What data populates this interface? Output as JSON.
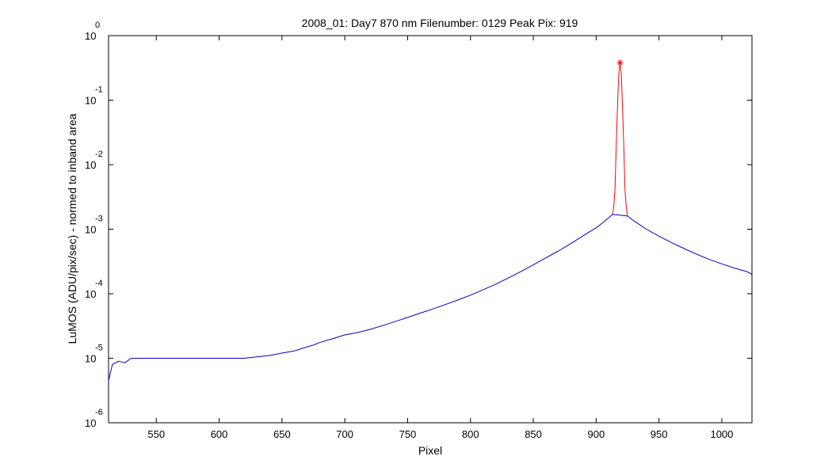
{
  "chart_data": {
    "type": "line",
    "title": "2008_01: Day7  870 nm  Filenumber: 0129 Peak Pix: 919",
    "xlabel": "Pixel",
    "ylabel": "LuMOS (ADU/pix/sec) - normed to inband area",
    "xlim": [
      512,
      1024
    ],
    "ylim": [
      1e-06,
      1
    ],
    "yscale": "log",
    "x_ticks": [
      "550",
      "600",
      "650",
      "700",
      "750",
      "800",
      "850",
      "900",
      "950",
      "1000"
    ],
    "y_ticks": [
      {
        "base": "10",
        "exp": "-6"
      },
      {
        "base": "10",
        "exp": "-5"
      },
      {
        "base": "10",
        "exp": "-4"
      },
      {
        "base": "10",
        "exp": "-3"
      },
      {
        "base": "10",
        "exp": "-2"
      },
      {
        "base": "10",
        "exp": "-1"
      },
      {
        "base": "10",
        "exp": "0"
      }
    ],
    "grid": false,
    "series": [
      {
        "color": "#0000cc",
        "x": [
          512,
          515,
          520,
          525,
          530,
          540,
          550,
          560,
          570,
          575,
          580,
          590,
          600,
          610,
          620,
          630,
          640,
          650,
          660,
          665,
          670,
          675,
          680,
          690,
          700,
          710,
          720,
          730,
          740,
          750,
          760,
          770,
          780,
          790,
          800,
          810,
          820,
          830,
          840,
          850,
          860,
          870,
          880,
          890,
          900,
          905,
          910,
          913,
          925,
          930,
          940,
          950,
          960,
          970,
          980,
          990,
          1000,
          1010,
          1020,
          1024
        ],
        "y": [
          4.5e-06,
          8e-06,
          9e-06,
          8.5e-06,
          1e-05,
          1e-05,
          1e-05,
          1e-05,
          1e-05,
          1e-05,
          1e-05,
          1e-05,
          1e-05,
          1e-05,
          1e-05,
          1.05e-05,
          1.1e-05,
          1.2e-05,
          1.3e-05,
          1.4e-05,
          1.5e-05,
          1.6e-05,
          1.75e-05,
          2e-05,
          2.3e-05,
          2.5e-05,
          2.8e-05,
          3.2e-05,
          3.7e-05,
          4.3e-05,
          5e-05,
          5.8e-05,
          6.8e-05,
          8e-05,
          9.5e-05,
          0.000115,
          0.00014,
          0.000175,
          0.00022,
          0.00028,
          0.00036,
          0.00046,
          0.0006,
          0.0008,
          0.00105,
          0.00125,
          0.0015,
          0.0017,
          0.0016,
          0.00135,
          0.001,
          0.00078,
          0.00062,
          0.0005,
          0.00041,
          0.00034,
          0.00029,
          0.00025,
          0.00022,
          0.0002
        ]
      },
      {
        "color": "#ff0000",
        "x": [
          913,
          914,
          915,
          916,
          917,
          918,
          919,
          920,
          921,
          922,
          923,
          924,
          925
        ],
        "y": [
          0.0017,
          0.0022,
          0.004,
          0.02,
          0.08,
          0.25,
          0.38,
          0.25,
          0.08,
          0.02,
          0.004,
          0.0022,
          0.0016
        ]
      }
    ],
    "peak": {
      "x": 919,
      "y": 0.38,
      "color": "#ff0000"
    }
  }
}
